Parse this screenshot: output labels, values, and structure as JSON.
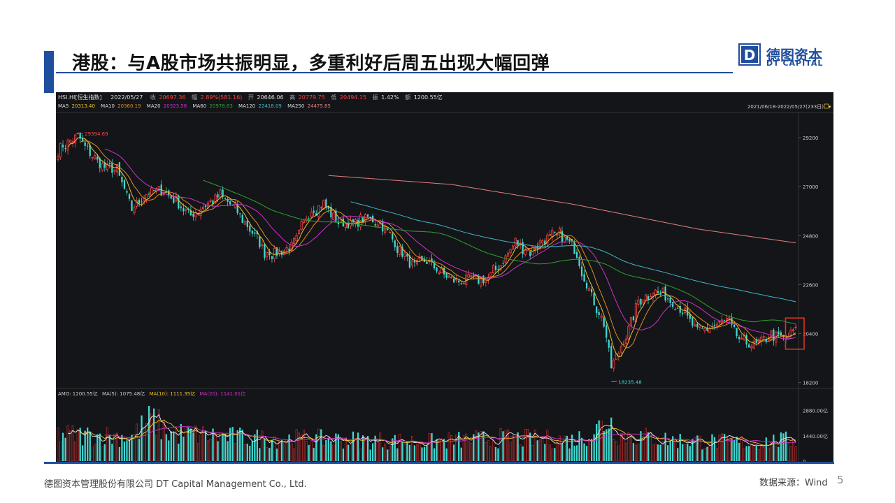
{
  "slide": {
    "title": "港股：与A股市场共振明显，多重利好后周五出现大幅回弹",
    "logo_cn": "德图资本",
    "logo_en": "DT CAPITAL",
    "logo_letter": "D",
    "footer_left": "德图资本管理股份有限公司  DT Capital Management  Co., Ltd.",
    "footer_right": "数据来源：Wind",
    "page_number": "5"
  },
  "chart_data": {
    "type": "candlestick",
    "header": {
      "symbol": "HSI.HI[恒生指数]",
      "date": "2022/05/27",
      "close_label": "收",
      "close": "20697.36",
      "change_label": "幅",
      "change": "2.89%(581.16)",
      "open_label": "开",
      "open": "20646.06",
      "high_label": "高",
      "high": "20779.75",
      "low_label": "低",
      "low": "20494.15",
      "amplitude_label": "振",
      "amplitude": "1.42%",
      "amount_label": "额",
      "amount": "1200.55亿",
      "range": "2021/06/18-2022/05/27(233日)"
    },
    "ma_legend": [
      {
        "name": "MA5",
        "value": "20313.40",
        "color": "#f0c030"
      },
      {
        "name": "MA10",
        "value": "20360.19",
        "color": "#e08a2a"
      },
      {
        "name": "MA20",
        "value": "20323.58",
        "color": "#d030d0"
      },
      {
        "name": "MA60",
        "value": "20978.83",
        "color": "#30a030"
      },
      {
        "name": "MA120",
        "value": "22418.09",
        "color": "#40b8c8"
      },
      {
        "name": "MA250",
        "value": "24475.85",
        "color": "#e08080"
      }
    ],
    "price_ticks": [
      "29200",
      "27000",
      "24800",
      "22600",
      "20400",
      "18200"
    ],
    "price_tick_values": [
      29200,
      27000,
      24800,
      22600,
      20400,
      18200
    ],
    "ylim": [
      18000,
      30300
    ],
    "annotations": {
      "max_label": "29394.69",
      "min_label": "18235.48",
      "max_value": 29394.69,
      "min_value": 18235.48
    },
    "volume_header": [
      {
        "label": "AMO: 1200.55亿",
        "color": "#cccccc"
      },
      {
        "label": "MA(5): 1075.48亿",
        "color": "#cccccc"
      },
      {
        "label": "MA(10): 1111.35亿",
        "color": "#f0c030"
      },
      {
        "label": "MA(20): 1141.01亿",
        "color": "#d030d0"
      }
    ],
    "volume_ticks": [
      "2880.00亿",
      "1440.00亿",
      "0"
    ],
    "volume_tick_values": [
      2880,
      1440,
      0
    ],
    "volume_ylim": [
      0,
      3500
    ],
    "close_anchors": [
      [
        0,
        28700
      ],
      [
        8,
        29300
      ],
      [
        12,
        28600
      ],
      [
        18,
        27900
      ],
      [
        24,
        27700
      ],
      [
        30,
        26000
      ],
      [
        36,
        26700
      ],
      [
        42,
        26900
      ],
      [
        48,
        26300
      ],
      [
        54,
        25700
      ],
      [
        60,
        26200
      ],
      [
        66,
        26600
      ],
      [
        72,
        26000
      ],
      [
        78,
        25100
      ],
      [
        84,
        24100
      ],
      [
        90,
        24000
      ],
      [
        96,
        24400
      ],
      [
        102,
        25900
      ],
      [
        108,
        26200
      ],
      [
        114,
        25400
      ],
      [
        120,
        25300
      ],
      [
        126,
        25600
      ],
      [
        132,
        25300
      ],
      [
        138,
        24300
      ],
      [
        144,
        23400
      ],
      [
        150,
        23700
      ],
      [
        156,
        23100
      ],
      [
        162,
        22700
      ],
      [
        168,
        22900
      ],
      [
        174,
        22800
      ],
      [
        180,
        23500
      ],
      [
        186,
        24500
      ],
      [
        192,
        24100
      ],
      [
        198,
        24700
      ],
      [
        204,
        24800
      ],
      [
        210,
        24300
      ],
      [
        214,
        22900
      ],
      [
        218,
        21800
      ],
      [
        222,
        20900
      ],
      [
        225,
        18900
      ],
      [
        228,
        19600
      ],
      [
        232,
        20600
      ],
      [
        236,
        21900
      ],
      [
        242,
        22300
      ],
      [
        248,
        22000
      ],
      [
        254,
        21400
      ],
      [
        260,
        20500
      ],
      [
        266,
        20700
      ],
      [
        272,
        21000
      ],
      [
        278,
        20000
      ],
      [
        284,
        19900
      ],
      [
        290,
        20400
      ],
      [
        296,
        20116
      ],
      [
        300,
        20697
      ]
    ],
    "ma250_anchors": [
      [
        110,
        27500
      ],
      [
        160,
        27100
      ],
      [
        210,
        26200
      ],
      [
        260,
        25100
      ],
      [
        300,
        24476
      ]
    ],
    "volume_anchors": [
      [
        0,
        1500
      ],
      [
        30,
        1400
      ],
      [
        38,
        2400
      ],
      [
        45,
        1600
      ],
      [
        80,
        1300
      ],
      [
        110,
        1250
      ],
      [
        150,
        1100
      ],
      [
        180,
        1300
      ],
      [
        210,
        1200
      ],
      [
        218,
        1700
      ],
      [
        224,
        2400
      ],
      [
        228,
        1500
      ],
      [
        250,
        1200
      ],
      [
        280,
        1050
      ],
      [
        300,
        1201
      ]
    ]
  }
}
